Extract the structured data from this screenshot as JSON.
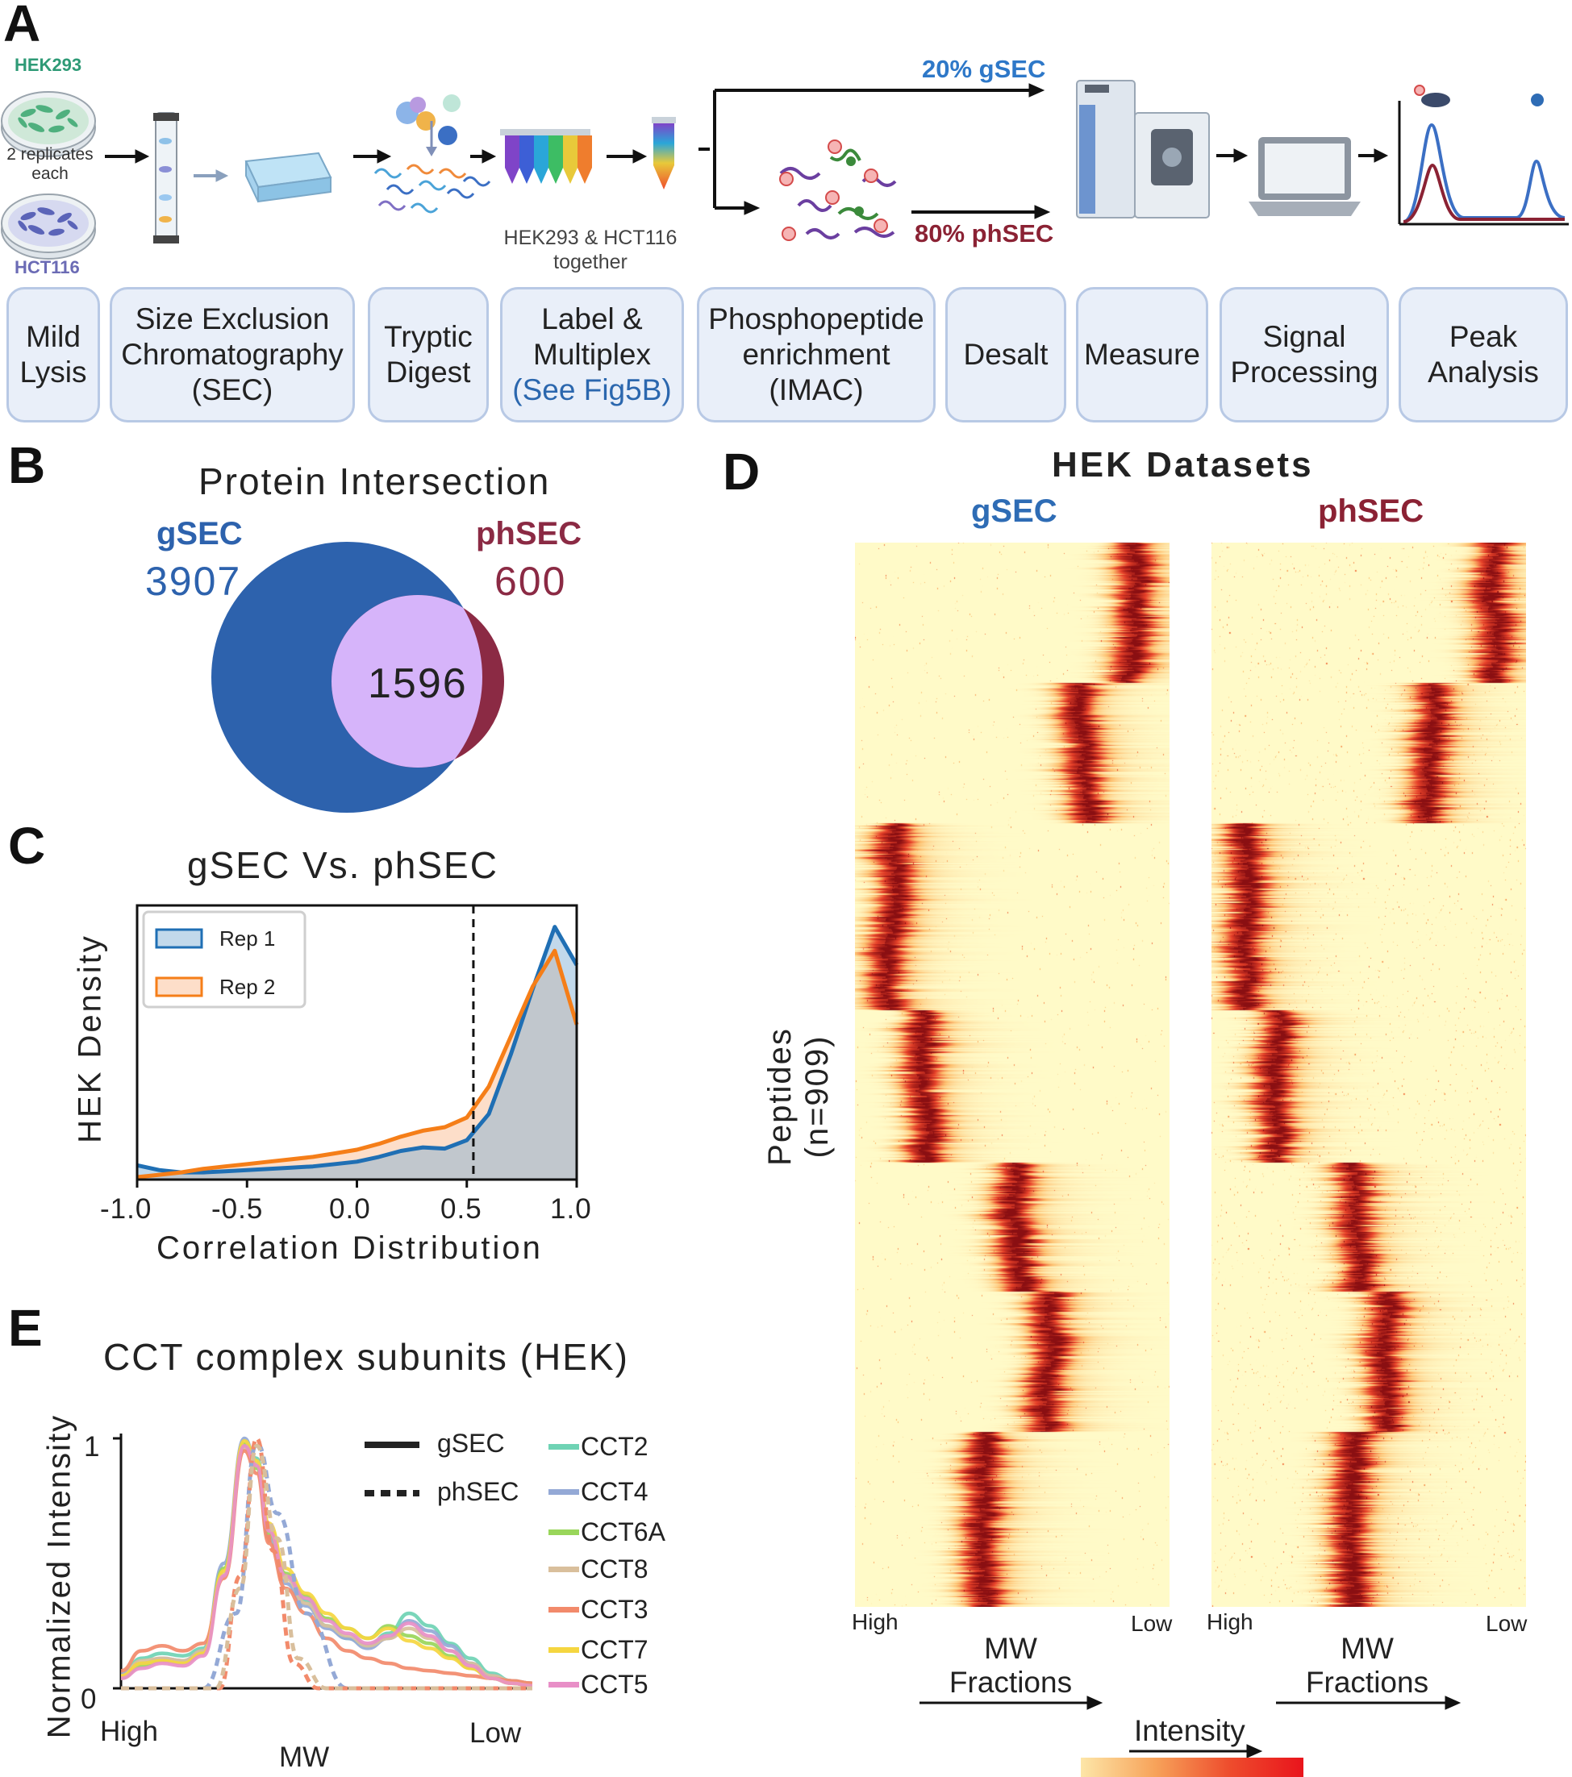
{
  "panel_a": {
    "letter": "A",
    "cell_line_1": "HEK293",
    "cell_line_2": "HCT116",
    "replicates_note_1": "2 replicates",
    "replicates_note_2": "each",
    "multiplex_note_1": "HEK293 & HCT116",
    "multiplex_note_2": "together",
    "split_top": "20% gSEC",
    "split_bottom": "80% phSEC",
    "steps": [
      {
        "line1": "Mild",
        "line2": "Lysis",
        "line3": ""
      },
      {
        "line1": "Size Exclusion",
        "line2": "Chromatography",
        "line3": "(SEC)"
      },
      {
        "line1": "Tryptic",
        "line2": "Digest",
        "line3": ""
      },
      {
        "line1": "Label &",
        "line2": "Multiplex",
        "line3": "(See Fig5B)"
      },
      {
        "line1": "Phosphopeptide",
        "line2": "enrichment",
        "line3": "(IMAC)"
      },
      {
        "line1": "Desalt",
        "line2": "",
        "line3": ""
      },
      {
        "line1": "Measure",
        "line2": "",
        "line3": ""
      },
      {
        "line1": "Signal",
        "line2": "Processing",
        "line3": ""
      },
      {
        "line1": "Peak",
        "line2": "Analysis",
        "line3": ""
      }
    ],
    "colors": {
      "gsec_blue": "#2e6cb5",
      "phsec_red": "#8b2234",
      "hek_green": "#2e9a76",
      "hct_purple": "#6b6bb5"
    }
  },
  "panel_b": {
    "letter": "B",
    "title": "Protein Intersection",
    "left_label": "gSEC",
    "left_count": "3907",
    "right_label": "phSEC",
    "right_count": "600",
    "overlap_count": "1596",
    "colors": {
      "left": "#2d62ad",
      "right": "#8b2a44",
      "overlap": "#d6b4fa"
    }
  },
  "panel_c": {
    "letter": "C",
    "chart_data": {
      "type": "area",
      "title": "gSEC Vs. phSEC",
      "xlabel": "Correlation Distribution",
      "ylabel": "HEK Density",
      "xlim": [
        -1.0,
        1.0
      ],
      "x_ticks": [
        "-1.0",
        "-0.5",
        "0.0",
        "0.5",
        "1.0"
      ],
      "threshold_line_x": 0.53,
      "legend": [
        "Rep 1",
        "Rep 2"
      ],
      "legend_position": "top-left",
      "x": [
        -1.0,
        -0.9,
        -0.8,
        -0.7,
        -0.6,
        -0.5,
        -0.4,
        -0.3,
        -0.2,
        -0.1,
        0.0,
        0.1,
        0.2,
        0.3,
        0.4,
        0.5,
        0.6,
        0.7,
        0.8,
        0.9,
        1.0
      ],
      "series": [
        {
          "name": "Rep 1",
          "color": "#1f6fb4",
          "values": [
            0.12,
            0.08,
            0.06,
            0.06,
            0.07,
            0.08,
            0.09,
            0.1,
            0.11,
            0.13,
            0.15,
            0.19,
            0.24,
            0.27,
            0.26,
            0.33,
            0.55,
            1.05,
            1.6,
            2.12,
            1.8
          ]
        },
        {
          "name": "Rep 2",
          "color": "#f57e18",
          "values": [
            0.02,
            0.04,
            0.06,
            0.09,
            0.11,
            0.13,
            0.15,
            0.17,
            0.19,
            0.22,
            0.25,
            0.3,
            0.36,
            0.41,
            0.44,
            0.52,
            0.78,
            1.2,
            1.62,
            1.92,
            1.3
          ]
        }
      ]
    }
  },
  "panel_d": {
    "letter": "D",
    "title": "HEK Datasets",
    "left_title": "gSEC",
    "right_title": "phSEC",
    "ylabel_1": "Peptides",
    "ylabel_2": "(n=909)",
    "x_high": "High",
    "x_low": "Low",
    "x_label_1": "MW",
    "x_label_2": "Fractions",
    "colorbar_label": "Intensity",
    "chart_data": {
      "type": "heatmap",
      "rows": 909,
      "columns": "SEC fractions (High MW to Low MW)",
      "peak_bands_gsec": [
        {
          "rows": [
            0,
            120
          ],
          "fraction": 0.88
        },
        {
          "rows": [
            120,
            240
          ],
          "fraction": 0.72
        },
        {
          "rows": [
            240,
            400
          ],
          "fraction": 0.1
        },
        {
          "rows": [
            400,
            530
          ],
          "fraction": 0.2
        },
        {
          "rows": [
            530,
            640
          ],
          "fraction": 0.5
        },
        {
          "rows": [
            640,
            760
          ],
          "fraction": 0.6
        },
        {
          "rows": [
            760,
            909
          ],
          "fraction": 0.4
        }
      ],
      "peak_bands_phsec": [
        {
          "rows": [
            0,
            120
          ],
          "fraction": 0.88
        },
        {
          "rows": [
            120,
            240
          ],
          "fraction": 0.68
        },
        {
          "rows": [
            240,
            400
          ],
          "fraction": 0.1
        },
        {
          "rows": [
            400,
            530
          ],
          "fraction": 0.2
        },
        {
          "rows": [
            530,
            640
          ],
          "fraction": 0.45
        },
        {
          "rows": [
            640,
            760
          ],
          "fraction": 0.55
        },
        {
          "rows": [
            760,
            909
          ],
          "fraction": 0.45
        }
      ],
      "colormap": [
        "#fffac8",
        "#fdbf6f",
        "#e8422a",
        "#8a0f12"
      ]
    }
  },
  "panel_e": {
    "letter": "E",
    "chart_data": {
      "type": "line",
      "title": "CCT complex subunits (HEK)",
      "ylabel": "Normalized Intensity",
      "xlabel": "MW",
      "x_tick_left": "High",
      "x_tick_right": "Low",
      "y_ticks": [
        "0",
        "1"
      ],
      "ylim": [
        0,
        1
      ],
      "style_legend": [
        {
          "label": "gSEC",
          "style": "solid"
        },
        {
          "label": "phSEC",
          "style": "dashed"
        }
      ],
      "x": [
        0,
        0.05,
        0.1,
        0.15,
        0.2,
        0.25,
        0.3,
        0.33,
        0.36,
        0.4,
        0.45,
        0.5,
        0.55,
        0.6,
        0.65,
        0.7,
        0.75,
        0.8,
        0.85,
        0.9,
        0.95,
        1.0
      ],
      "series": [
        {
          "name": "CCT2",
          "color": "#6fd3b4",
          "values": [
            0.05,
            0.12,
            0.14,
            0.13,
            0.16,
            0.45,
            0.97,
            0.92,
            0.65,
            0.45,
            0.35,
            0.25,
            0.2,
            0.17,
            0.22,
            0.3,
            0.25,
            0.18,
            0.12,
            0.06,
            0.03,
            0.02
          ]
        },
        {
          "name": "CCT4",
          "color": "#94a9d6",
          "values": [
            0.06,
            0.1,
            0.12,
            0.11,
            0.15,
            0.5,
            1.0,
            0.9,
            0.6,
            0.42,
            0.33,
            0.24,
            0.2,
            0.16,
            0.2,
            0.27,
            0.23,
            0.17,
            0.1,
            0.05,
            0.03,
            0.02
          ]
        },
        {
          "name": "CCT6A",
          "color": "#99d65a",
          "values": [
            0.04,
            0.09,
            0.11,
            0.1,
            0.14,
            0.48,
            0.98,
            0.88,
            0.62,
            0.46,
            0.37,
            0.28,
            0.24,
            0.2,
            0.25,
            0.21,
            0.18,
            0.13,
            0.08,
            0.04,
            0.02,
            0.01
          ]
        },
        {
          "name": "CCT8",
          "color": "#d9bf9c",
          "values": [
            0.05,
            0.11,
            0.12,
            0.11,
            0.15,
            0.46,
            0.96,
            0.9,
            0.64,
            0.44,
            0.34,
            0.25,
            0.21,
            0.17,
            0.2,
            0.24,
            0.2,
            0.15,
            0.1,
            0.05,
            0.03,
            0.02
          ]
        },
        {
          "name": "CCT3",
          "color": "#f28a6b",
          "values": [
            0.07,
            0.15,
            0.17,
            0.15,
            0.18,
            0.44,
            0.95,
            0.86,
            0.58,
            0.4,
            0.3,
            0.2,
            0.15,
            0.12,
            0.1,
            0.08,
            0.07,
            0.06,
            0.05,
            0.04,
            0.03,
            0.02
          ]
        },
        {
          "name": "CCT7",
          "color": "#f5d640",
          "values": [
            0.05,
            0.1,
            0.11,
            0.1,
            0.14,
            0.47,
            0.99,
            0.91,
            0.66,
            0.48,
            0.38,
            0.3,
            0.24,
            0.2,
            0.24,
            0.19,
            0.16,
            0.12,
            0.08,
            0.04,
            0.02,
            0.01
          ]
        },
        {
          "name": "CCT5",
          "color": "#e88fc7",
          "values": [
            0.04,
            0.08,
            0.1,
            0.09,
            0.13,
            0.45,
            0.97,
            0.89,
            0.63,
            0.45,
            0.36,
            0.27,
            0.22,
            0.18,
            0.21,
            0.26,
            0.21,
            0.15,
            0.09,
            0.04,
            0.02,
            0.01
          ]
        }
      ],
      "phsec_dashed": [
        {
          "name": "CCT4",
          "color": "#94a9d6",
          "x": [
            0,
            0.2,
            0.28,
            0.33,
            0.38,
            0.45,
            0.55,
            1.0
          ],
          "values": [
            0.0,
            0.0,
            0.3,
            0.98,
            0.7,
            0.3,
            0.0,
            0.0
          ]
        },
        {
          "name": "CCT3",
          "color": "#f28a6b",
          "x": [
            0,
            0.24,
            0.29,
            0.33,
            0.37,
            0.42,
            0.48,
            1.0
          ],
          "values": [
            0.0,
            0.0,
            0.45,
            1.0,
            0.55,
            0.1,
            0.0,
            0.0
          ]
        },
        {
          "name": "CCT8",
          "color": "#d9bf9c",
          "x": [
            0,
            0.23,
            0.29,
            0.33,
            0.38,
            0.43,
            0.5,
            1.0
          ],
          "values": [
            0.0,
            0.0,
            0.4,
            0.97,
            0.6,
            0.12,
            0.0,
            0.0
          ]
        }
      ]
    }
  }
}
